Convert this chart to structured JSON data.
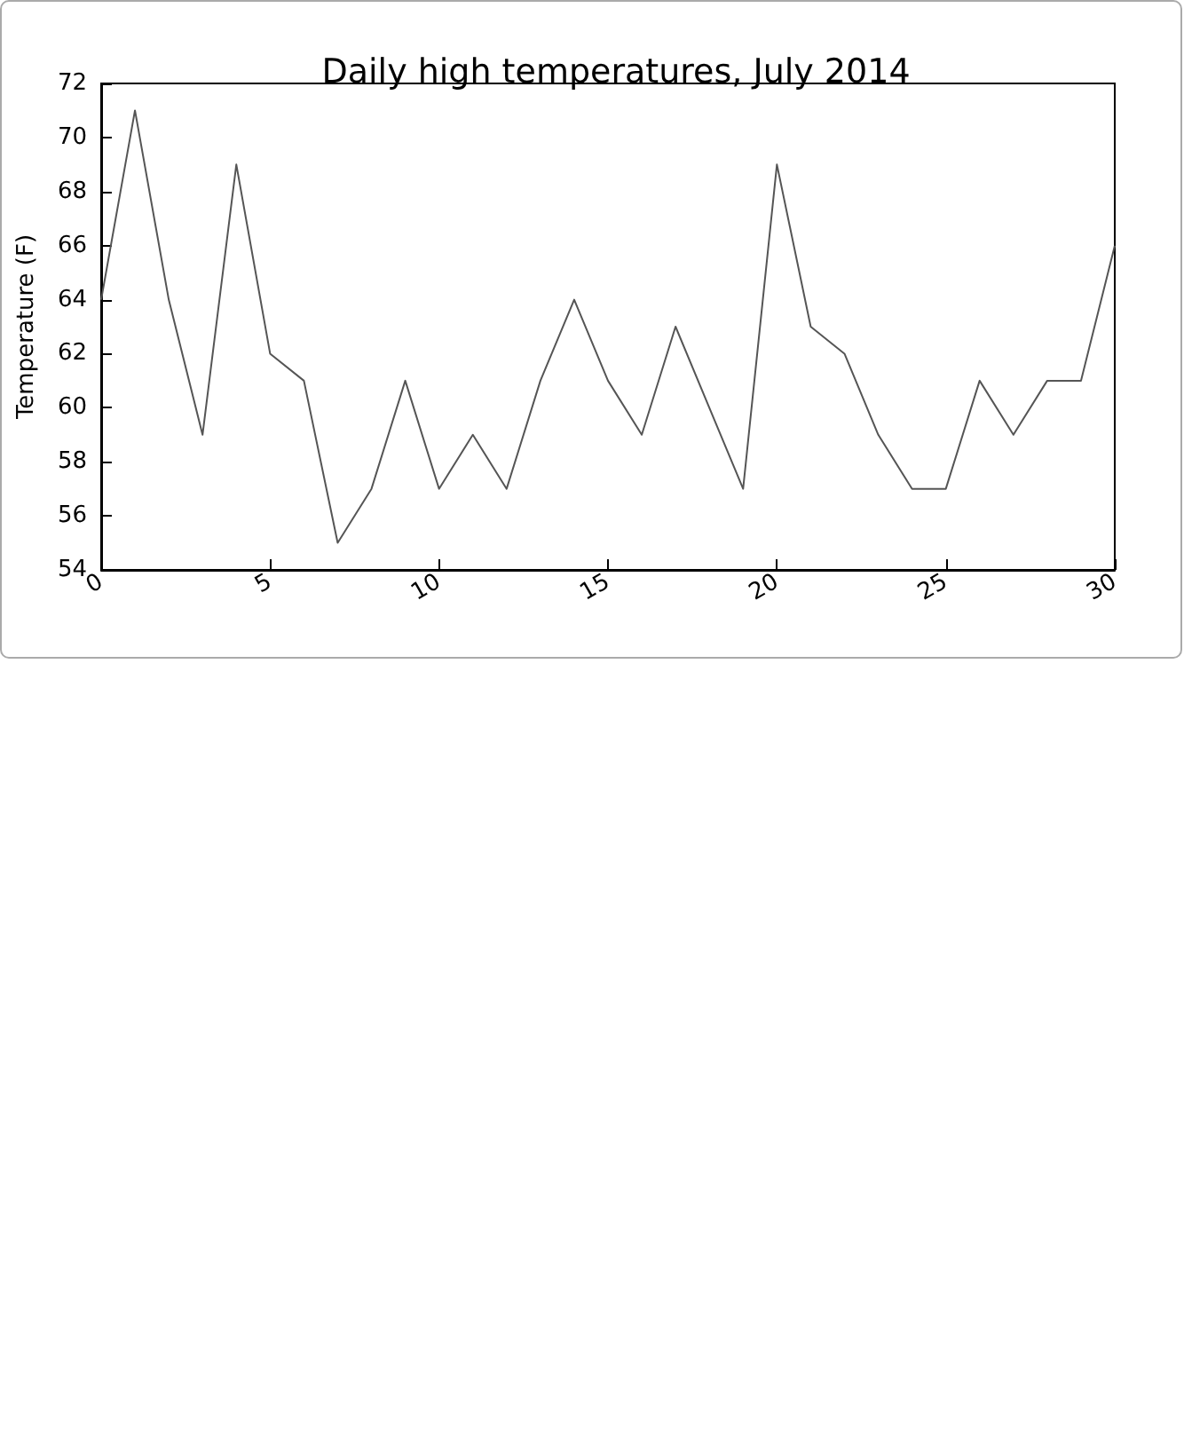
{
  "chart_data": {
    "type": "line",
    "title": "Daily high temperatures, July 2014",
    "ylabel": "Temperature (F)",
    "x": [
      0,
      1,
      2,
      3,
      4,
      5,
      6,
      7,
      8,
      9,
      10,
      11,
      12,
      13,
      14,
      15,
      16,
      17,
      18,
      19,
      20,
      21,
      22,
      23,
      24,
      25,
      26,
      27,
      28,
      29,
      30
    ],
    "series": [
      {
        "color": "#555555",
        "values": [
          64,
          71,
          64,
          59,
          69,
          62,
          61,
          55,
          57,
          61,
          57,
          59,
          57,
          61,
          64,
          61,
          59,
          63,
          60,
          57,
          69,
          63,
          62,
          59,
          57,
          57,
          61,
          59,
          61,
          61,
          66
        ]
      }
    ],
    "xlim": [
      0,
      30
    ],
    "xticks": [
      0,
      5,
      10,
      15,
      20,
      25,
      30
    ],
    "ylim": [
      54,
      72
    ],
    "yticks": [
      54,
      56,
      58,
      60,
      62,
      64,
      66,
      68,
      70,
      72
    ],
    "grid": false,
    "marker": "none",
    "line_style": "solid"
  }
}
